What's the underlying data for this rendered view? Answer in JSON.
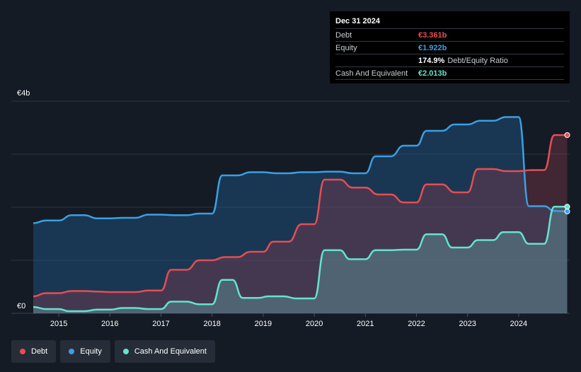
{
  "tooltip": {
    "date": "Dec 31 2024",
    "rows": [
      {
        "label": "Debt",
        "value": "€3.361b",
        "color": "#e64d53"
      },
      {
        "label": "Equity",
        "value": "€1.922b",
        "color": "#3a9fe6"
      },
      {
        "label": "",
        "value": "174.9%",
        "extra": "Debt/Equity Ratio",
        "color": "#ffffff"
      },
      {
        "label": "Cash And Equivalent",
        "value": "€2.013b",
        "color": "#64e3cd"
      }
    ]
  },
  "legend": [
    {
      "label": "Debt",
      "color": "#e64d53"
    },
    {
      "label": "Equity",
      "color": "#3a9fe6"
    },
    {
      "label": "Cash And Equivalent",
      "color": "#64e3cd"
    }
  ],
  "chart_data": {
    "type": "area",
    "y_tick_labels": [
      "€0",
      "€4b"
    ],
    "ylim": [
      0,
      4
    ],
    "xlim": [
      2014.5,
      2025.0
    ],
    "x_tick_labels": [
      "2015",
      "2016",
      "2017",
      "2018",
      "2019",
      "2020",
      "2021",
      "2022",
      "2023",
      "2024"
    ],
    "x_ticks": [
      2015,
      2016,
      2017,
      2018,
      2019,
      2020,
      2021,
      2022,
      2023,
      2024
    ],
    "gridlines": [
      1,
      2,
      3,
      4
    ],
    "series": [
      {
        "name": "Debt",
        "color": "#e64d53",
        "fill": "rgba(150,60,80,0.35)",
        "points": [
          [
            2014.5,
            0.32
          ],
          [
            2014.75,
            0.38
          ],
          [
            2015.0,
            0.38
          ],
          [
            2015.25,
            0.42
          ],
          [
            2015.5,
            0.42
          ],
          [
            2015.75,
            0.41
          ],
          [
            2016.0,
            0.4
          ],
          [
            2016.25,
            0.4
          ],
          [
            2016.5,
            0.4
          ],
          [
            2016.75,
            0.43
          ],
          [
            2017.0,
            0.43
          ],
          [
            2017.2,
            0.82
          ],
          [
            2017.5,
            0.82
          ],
          [
            2017.75,
            1.0
          ],
          [
            2018.0,
            1.0
          ],
          [
            2018.25,
            1.06
          ],
          [
            2018.5,
            1.06
          ],
          [
            2018.75,
            1.16
          ],
          [
            2019.0,
            1.16
          ],
          [
            2019.2,
            1.35
          ],
          [
            2019.5,
            1.35
          ],
          [
            2019.75,
            1.68
          ],
          [
            2020.0,
            1.68
          ],
          [
            2020.2,
            2.52
          ],
          [
            2020.5,
            2.52
          ],
          [
            2020.75,
            2.37
          ],
          [
            2021.0,
            2.37
          ],
          [
            2021.25,
            2.24
          ],
          [
            2021.5,
            2.24
          ],
          [
            2021.75,
            2.09
          ],
          [
            2022.0,
            2.09
          ],
          [
            2022.2,
            2.43
          ],
          [
            2022.5,
            2.43
          ],
          [
            2022.75,
            2.28
          ],
          [
            2023.0,
            2.28
          ],
          [
            2023.2,
            2.72
          ],
          [
            2023.5,
            2.72
          ],
          [
            2023.75,
            2.68
          ],
          [
            2024.0,
            2.68
          ],
          [
            2024.25,
            2.7
          ],
          [
            2024.5,
            2.7
          ],
          [
            2024.7,
            3.36
          ],
          [
            2024.95,
            3.36
          ]
        ]
      },
      {
        "name": "Equity",
        "color": "#3a9fe6",
        "fill": "rgba(30,90,140,0.45)",
        "points": [
          [
            2014.5,
            1.7
          ],
          [
            2014.75,
            1.75
          ],
          [
            2015.0,
            1.75
          ],
          [
            2015.25,
            1.85
          ],
          [
            2015.5,
            1.85
          ],
          [
            2015.75,
            1.79
          ],
          [
            2016.0,
            1.79
          ],
          [
            2016.25,
            1.8
          ],
          [
            2016.5,
            1.8
          ],
          [
            2016.75,
            1.86
          ],
          [
            2017.0,
            1.86
          ],
          [
            2017.25,
            1.85
          ],
          [
            2017.5,
            1.85
          ],
          [
            2017.75,
            1.88
          ],
          [
            2018.0,
            1.88
          ],
          [
            2018.2,
            2.6
          ],
          [
            2018.5,
            2.6
          ],
          [
            2018.75,
            2.66
          ],
          [
            2019.0,
            2.66
          ],
          [
            2019.25,
            2.64
          ],
          [
            2019.5,
            2.64
          ],
          [
            2019.75,
            2.66
          ],
          [
            2020.0,
            2.66
          ],
          [
            2020.25,
            2.67
          ],
          [
            2020.5,
            2.67
          ],
          [
            2020.75,
            2.64
          ],
          [
            2021.0,
            2.64
          ],
          [
            2021.2,
            2.96
          ],
          [
            2021.5,
            2.96
          ],
          [
            2021.75,
            3.16
          ],
          [
            2022.0,
            3.16
          ],
          [
            2022.2,
            3.44
          ],
          [
            2022.5,
            3.44
          ],
          [
            2022.75,
            3.56
          ],
          [
            2023.0,
            3.56
          ],
          [
            2023.25,
            3.63
          ],
          [
            2023.5,
            3.63
          ],
          [
            2023.75,
            3.7
          ],
          [
            2024.0,
            3.7
          ],
          [
            2024.2,
            2.02
          ],
          [
            2024.5,
            2.02
          ],
          [
            2024.7,
            1.93
          ],
          [
            2024.95,
            1.92
          ]
        ]
      },
      {
        "name": "Cash And Equivalent",
        "color": "#64e3cd",
        "fill": "rgba(100,180,180,0.35)",
        "points": [
          [
            2014.5,
            0.12
          ],
          [
            2014.75,
            0.08
          ],
          [
            2015.0,
            0.08
          ],
          [
            2015.2,
            0.04
          ],
          [
            2015.5,
            0.04
          ],
          [
            2015.75,
            0.07
          ],
          [
            2016.0,
            0.07
          ],
          [
            2016.25,
            0.1
          ],
          [
            2016.5,
            0.1
          ],
          [
            2016.75,
            0.08
          ],
          [
            2017.0,
            0.08
          ],
          [
            2017.2,
            0.22
          ],
          [
            2017.5,
            0.22
          ],
          [
            2017.75,
            0.17
          ],
          [
            2018.0,
            0.17
          ],
          [
            2018.2,
            0.63
          ],
          [
            2018.4,
            0.63
          ],
          [
            2018.6,
            0.29
          ],
          [
            2018.9,
            0.29
          ],
          [
            2019.1,
            0.32
          ],
          [
            2019.4,
            0.32
          ],
          [
            2019.65,
            0.28
          ],
          [
            2020.0,
            0.28
          ],
          [
            2020.2,
            1.19
          ],
          [
            2020.5,
            1.19
          ],
          [
            2020.7,
            1.02
          ],
          [
            2021.0,
            1.02
          ],
          [
            2021.2,
            1.19
          ],
          [
            2021.5,
            1.19
          ],
          [
            2021.75,
            1.2
          ],
          [
            2022.0,
            1.2
          ],
          [
            2022.2,
            1.49
          ],
          [
            2022.5,
            1.49
          ],
          [
            2022.7,
            1.24
          ],
          [
            2023.0,
            1.24
          ],
          [
            2023.2,
            1.38
          ],
          [
            2023.5,
            1.38
          ],
          [
            2023.7,
            1.53
          ],
          [
            2024.0,
            1.53
          ],
          [
            2024.2,
            1.31
          ],
          [
            2024.5,
            1.31
          ],
          [
            2024.7,
            2.01
          ],
          [
            2024.95,
            2.01
          ]
        ]
      }
    ]
  }
}
